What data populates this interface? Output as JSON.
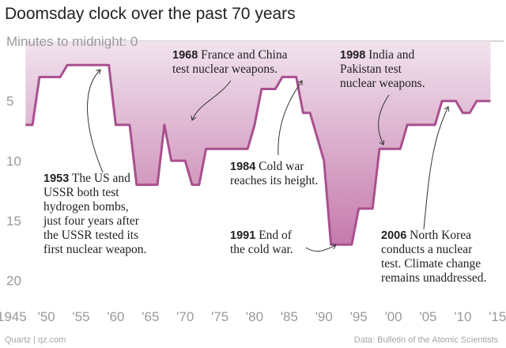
{
  "header": {
    "title": "Doomsday clock over the past 70 years"
  },
  "footer": {
    "left": "Quartz | qz.com",
    "right": "Data: Bulletin of the Atomic Scientists"
  },
  "colors": {
    "line": "#a9508f",
    "fill_top": "#f1e3ee",
    "fill_bottom": "#c57aab",
    "axis_text": "#9a9a9a",
    "grid": "#bdbdbd"
  },
  "chart_data": {
    "type": "area",
    "title": "Doomsday clock over the past 70 years",
    "ylabel_prefix": "Minutes to midnight: ",
    "xlim": [
      1944,
      2016
    ],
    "ylim": [
      0,
      23
    ],
    "y_inverted": true,
    "yticks": [
      0,
      5,
      10,
      15,
      20
    ],
    "xticks": [
      {
        "x": 1945,
        "label": "1945"
      },
      {
        "x": 1950,
        "label": "'50"
      },
      {
        "x": 1955,
        "label": "'55"
      },
      {
        "x": 1960,
        "label": "'60"
      },
      {
        "x": 1965,
        "label": "'65"
      },
      {
        "x": 1970,
        "label": "'70"
      },
      {
        "x": 1975,
        "label": "'75"
      },
      {
        "x": 1980,
        "label": "'80"
      },
      {
        "x": 1985,
        "label": "'85"
      },
      {
        "x": 1990,
        "label": "'90"
      },
      {
        "x": 1995,
        "label": "'95"
      },
      {
        "x": 2000,
        "label": "'00"
      },
      {
        "x": 2005,
        "label": "'05"
      },
      {
        "x": 2010,
        "label": "'10"
      },
      {
        "x": 2015,
        "label": "'15"
      }
    ],
    "series": [
      {
        "name": "Minutes to midnight",
        "points": [
          [
            1947,
            7
          ],
          [
            1948,
            7
          ],
          [
            1949,
            3
          ],
          [
            1952,
            3
          ],
          [
            1953,
            2
          ],
          [
            1959,
            2
          ],
          [
            1960,
            7
          ],
          [
            1962,
            7
          ],
          [
            1963,
            12
          ],
          [
            1966,
            12
          ],
          [
            1967,
            7
          ],
          [
            1968,
            10
          ],
          [
            1970,
            10
          ],
          [
            1971,
            12
          ],
          [
            1972,
            12
          ],
          [
            1973,
            9
          ],
          [
            1979,
            9
          ],
          [
            1980,
            7
          ],
          [
            1981,
            4
          ],
          [
            1983,
            4
          ],
          [
            1984,
            3
          ],
          [
            1986,
            3
          ],
          [
            1987,
            6
          ],
          [
            1988,
            6
          ],
          [
            1990,
            10
          ],
          [
            1991,
            17
          ],
          [
            1994,
            17
          ],
          [
            1995,
            14
          ],
          [
            1997,
            14
          ],
          [
            1998,
            9
          ],
          [
            2001,
            9
          ],
          [
            2002,
            7
          ],
          [
            2006,
            7
          ],
          [
            2007,
            5
          ],
          [
            2009,
            5
          ],
          [
            2010,
            6
          ],
          [
            2011,
            6
          ],
          [
            2012,
            5
          ],
          [
            2014,
            5
          ]
        ]
      }
    ],
    "annotations": [
      {
        "year": "1953",
        "lines": [
          " The US and",
          "USSR both test",
          "hydrogen bombs,",
          "just four years after",
          "the USSR tested its",
          "first nuclear weapon."
        ],
        "target": [
          1953,
          2
        ]
      },
      {
        "year": "1968",
        "lines": [
          " France and China",
          "test nuclear weapons."
        ],
        "target": [
          1967,
          7
        ]
      },
      {
        "year": "1984",
        "lines": [
          " Cold war",
          "reaches its height."
        ],
        "target": [
          1985,
          3
        ]
      },
      {
        "year": "1991",
        "lines": [
          " End of",
          "the cold war."
        ],
        "target": [
          1990,
          17
        ]
      },
      {
        "year": "1998",
        "lines": [
          " India and",
          "Pakistan test",
          "nuclear weapons."
        ],
        "target": [
          1997,
          9
        ]
      },
      {
        "year": "2006",
        "lines": [
          " North Korea",
          "conducts a nuclear",
          "test. Climate change",
          "remains unaddressed."
        ],
        "target": [
          2006,
          5
        ]
      }
    ]
  }
}
